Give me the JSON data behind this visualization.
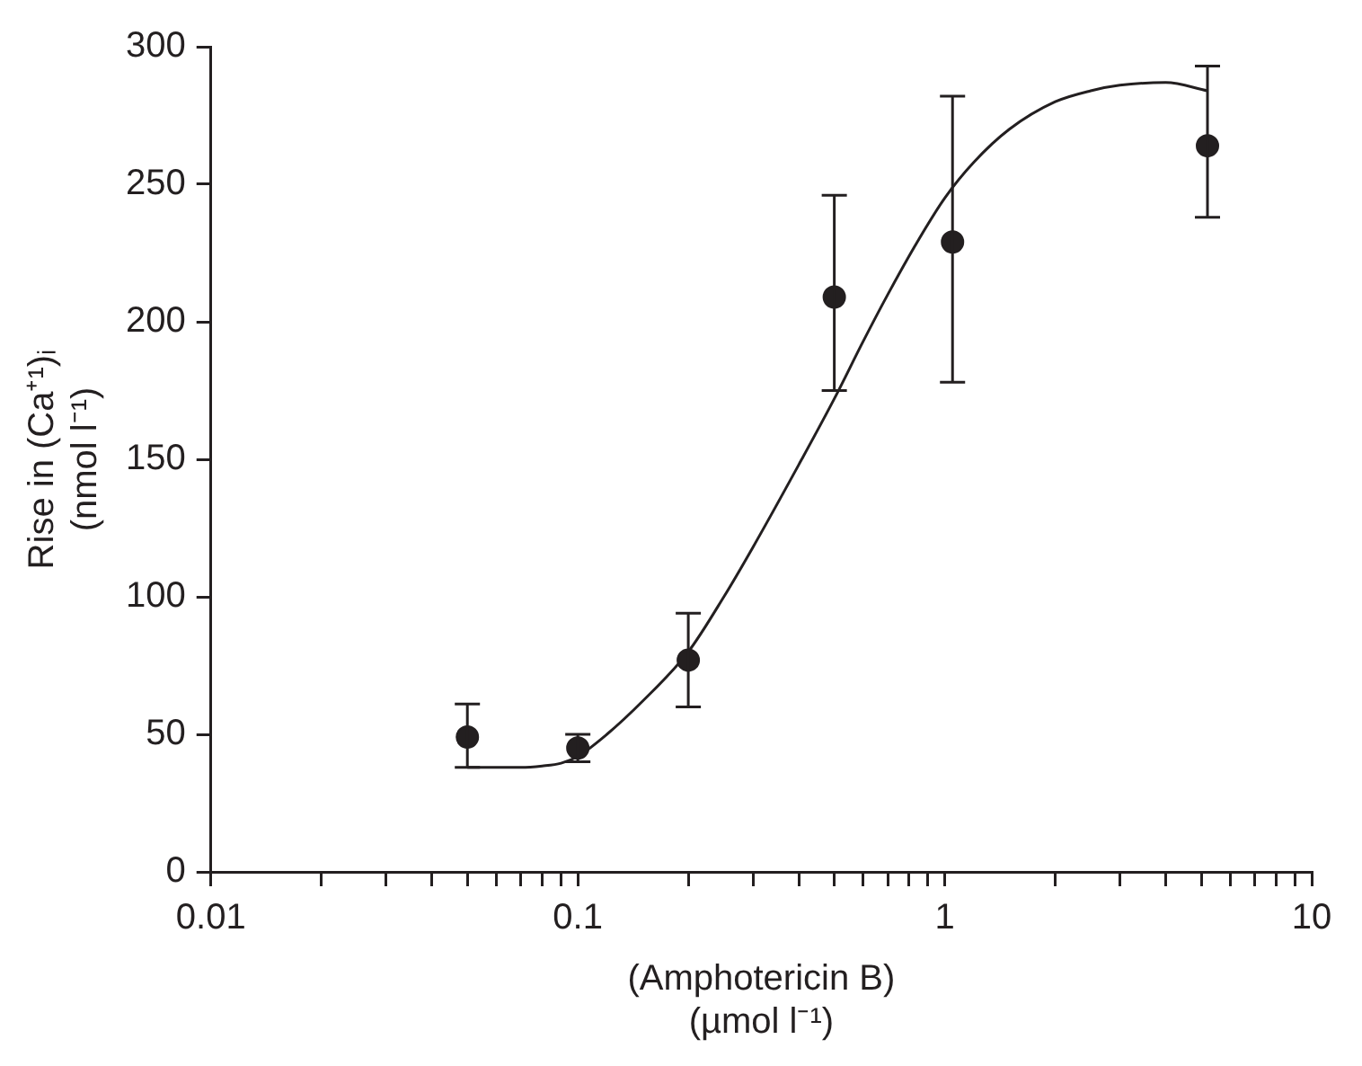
{
  "chart_data": {
    "type": "scatter",
    "xlabel": "(Amphotericin B)\n(µmol l⁻¹)",
    "ylabel": "Rise in (Ca⁺¹)ᵢ\n(nmol l⁻¹)",
    "log": "x",
    "grid": false,
    "marker": "circle",
    "xlim": [
      0.01,
      10
    ],
    "xticks": [
      0.01,
      {
        "value": 0.02,
        "label": null
      },
      {
        "value": 0.03,
        "label": null
      },
      {
        "value": 0.04,
        "label": null
      },
      {
        "value": 0.05,
        "label": null
      },
      {
        "value": 0.06,
        "label": null
      },
      {
        "value": 0.07,
        "label": null
      },
      {
        "value": 0.08,
        "label": null
      },
      {
        "value": 0.09,
        "label": null
      },
      0.1,
      {
        "value": 0.2,
        "label": null
      },
      {
        "value": 0.3,
        "label": null
      },
      {
        "value": 0.4,
        "label": null
      },
      {
        "value": 0.5,
        "label": null
      },
      {
        "value": 0.6,
        "label": null
      },
      {
        "value": 0.7,
        "label": null
      },
      {
        "value": 0.8,
        "label": null
      },
      {
        "value": 0.9,
        "label": null
      },
      1,
      {
        "value": 2,
        "label": null
      },
      {
        "value": 3,
        "label": null
      },
      {
        "value": 4,
        "label": null
      },
      {
        "value": 5,
        "label": null
      },
      {
        "value": 6,
        "label": null
      },
      {
        "value": 7,
        "label": null
      },
      {
        "value": 8,
        "label": null
      },
      {
        "value": 9,
        "label": null
      },
      10
    ],
    "ylim": [
      0,
      300
    ],
    "yticks": [
      0,
      50,
      100,
      150,
      200,
      250,
      300
    ],
    "series": [
      {
        "type": "scatter",
        "color": "#231f20",
        "x": [
          0.05,
          0.1,
          0.2,
          0.5,
          1.05,
          5.2
        ],
        "values": [
          49,
          45,
          77,
          209,
          229,
          264
        ],
        "errors": [
          [
            38,
            61
          ],
          [
            40,
            50
          ],
          [
            60,
            94
          ],
          [
            175,
            246
          ],
          [
            178,
            282
          ],
          [
            238,
            293
          ]
        ]
      },
      {
        "type": "line",
        "color": "#231f20",
        "marker": "none",
        "x": [
          0.05,
          0.07,
          0.08,
          0.09,
          0.1,
          0.12,
          0.15,
          0.2,
          0.25,
          0.3,
          0.4,
          0.5,
          0.6,
          0.7,
          0.85,
          1,
          1.2,
          1.5,
          2,
          2.5,
          3,
          4,
          5.2
        ],
        "values": [
          38,
          38,
          38.5,
          39.5,
          42,
          50,
          62,
          80,
          100,
          118,
          148,
          172,
          193,
          210,
          230,
          245,
          258,
          270,
          280,
          284,
          286,
          287,
          284
        ]
      }
    ]
  }
}
